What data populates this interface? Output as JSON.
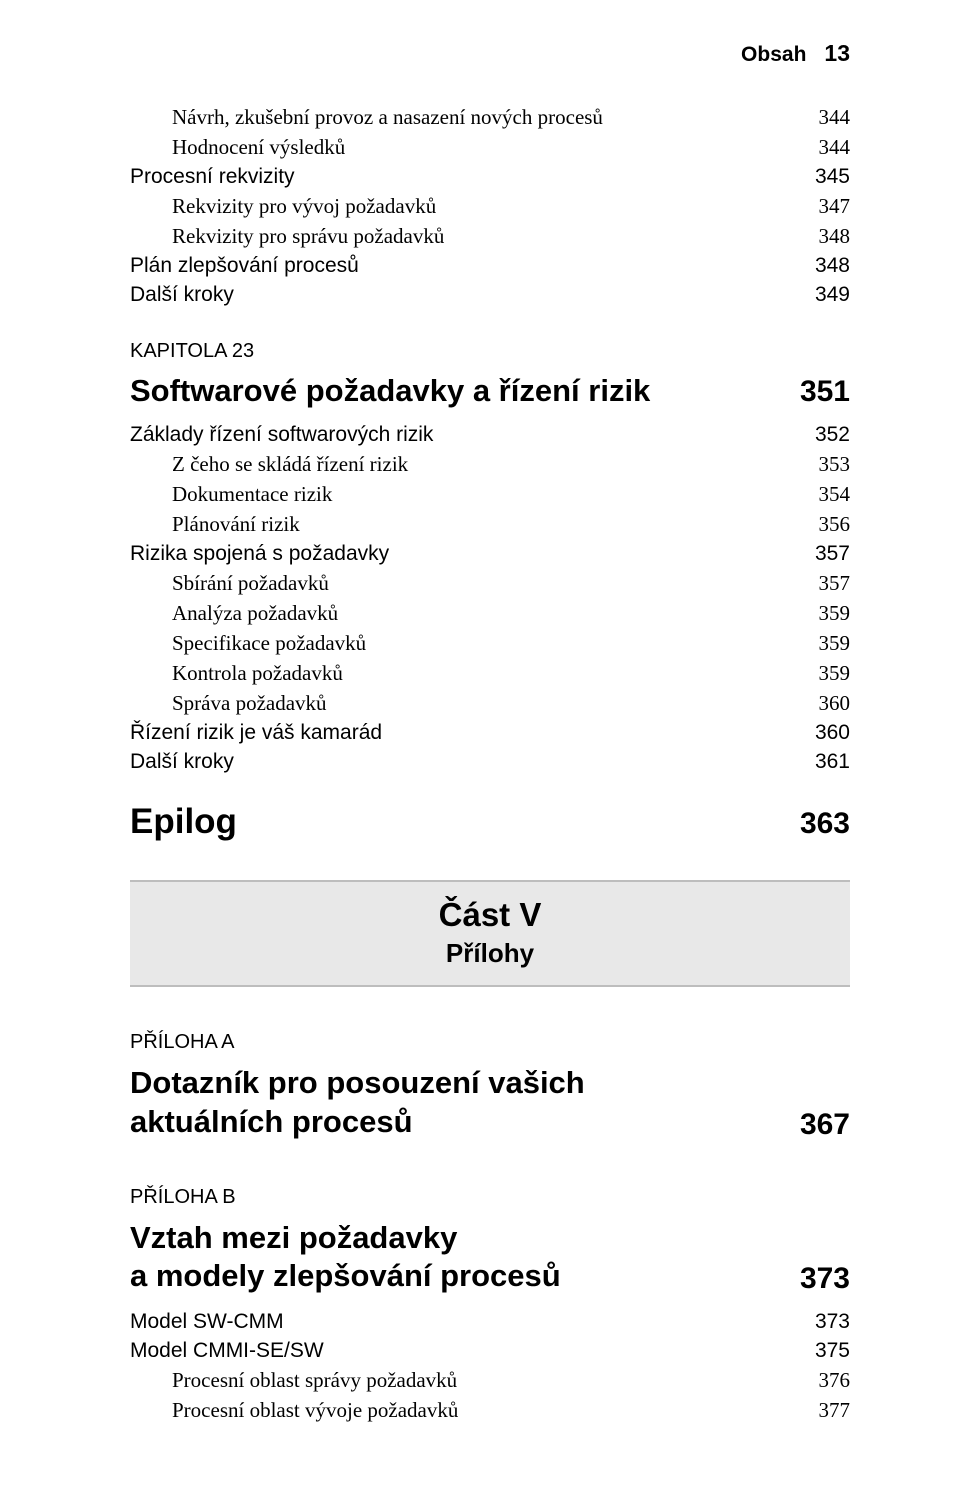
{
  "colors": {
    "bg": "#ffffff",
    "text": "#000000",
    "divider_bg": "#e8e8e8",
    "divider_border": "#bdbdbd"
  },
  "header": {
    "label": "Obsah",
    "page": "13"
  },
  "block1": [
    {
      "indent": 1,
      "style": "serif",
      "text": "Návrh, zkušební provoz a nasazení nových procesů",
      "page": "344"
    },
    {
      "indent": 1,
      "style": "serif",
      "text": "Hodnocení výsledků",
      "page": "344"
    },
    {
      "indent": 0,
      "style": "sans",
      "text": "Procesní rekvizity",
      "page": "345",
      "pgsans": true
    },
    {
      "indent": 1,
      "style": "serif",
      "text": "Rekvizity pro vývoj požadavků",
      "page": "347"
    },
    {
      "indent": 1,
      "style": "serif",
      "text": "Rekvizity pro správu požadavků",
      "page": "348"
    },
    {
      "indent": 0,
      "style": "sans",
      "text": "Plán zlepšování procesů",
      "page": "348",
      "pgsans": true
    },
    {
      "indent": 0,
      "style": "sans",
      "text": "Další kroky",
      "page": "349",
      "pgsans": true
    }
  ],
  "chapter": {
    "kapitola": "KAPITOLA 23",
    "title": "Softwarové požadavky a řízení rizik",
    "page": "351"
  },
  "block2": [
    {
      "indent": 0,
      "style": "sans",
      "text": "Základy řízení softwarových rizik",
      "page": "352",
      "pgsans": true
    },
    {
      "indent": 1,
      "style": "serif",
      "text": "Z čeho se skládá řízení rizik",
      "page": "353"
    },
    {
      "indent": 1,
      "style": "serif",
      "text": "Dokumentace rizik",
      "page": "354"
    },
    {
      "indent": 1,
      "style": "serif",
      "text": "Plánování rizik",
      "page": "356"
    },
    {
      "indent": 0,
      "style": "sans",
      "text": "Rizika spojená s požadavky",
      "page": "357",
      "pgsans": true
    },
    {
      "indent": 1,
      "style": "serif",
      "text": "Sbírání požadavků",
      "page": "357"
    },
    {
      "indent": 1,
      "style": "serif",
      "text": "Analýza požadavků",
      "page": "359"
    },
    {
      "indent": 1,
      "style": "serif",
      "text": "Specifikace požadavků",
      "page": "359"
    },
    {
      "indent": 1,
      "style": "serif",
      "text": "Kontrola požadavků",
      "page": "359"
    },
    {
      "indent": 1,
      "style": "serif",
      "text": "Správa požadavků",
      "page": "360"
    },
    {
      "indent": 0,
      "style": "sans",
      "text": "Řízení rizik je váš kamarád",
      "page": "360",
      "pgsans": true
    },
    {
      "indent": 0,
      "style": "sans",
      "text": "Další kroky",
      "page": "361",
      "pgsans": true
    }
  ],
  "epilog": {
    "title": "Epilog",
    "page": "363"
  },
  "part": {
    "title": "Část V",
    "sub": "Přílohy"
  },
  "appendixA": {
    "label": "PŘÍLOHA A",
    "line1": "Dotazník pro posouzení vašich",
    "line2": "aktuálních procesů",
    "page": "367"
  },
  "appendixB": {
    "label": "PŘÍLOHA B",
    "line1": "Vztah mezi požadavky",
    "line2": "a modely zlepšování procesů",
    "page": "373"
  },
  "block3": [
    {
      "indent": 0,
      "style": "sans",
      "text": "Model SW-CMM",
      "page": "373",
      "pgsans": true
    },
    {
      "indent": 0,
      "style": "sans",
      "text": "Model CMMI-SE/SW",
      "page": "375",
      "pgsans": true
    },
    {
      "indent": 1,
      "style": "serif",
      "text": "Procesní oblast správy požadavků",
      "page": "376"
    },
    {
      "indent": 1,
      "style": "serif",
      "text": "Procesní oblast vývoje požadavků",
      "page": "377"
    }
  ]
}
